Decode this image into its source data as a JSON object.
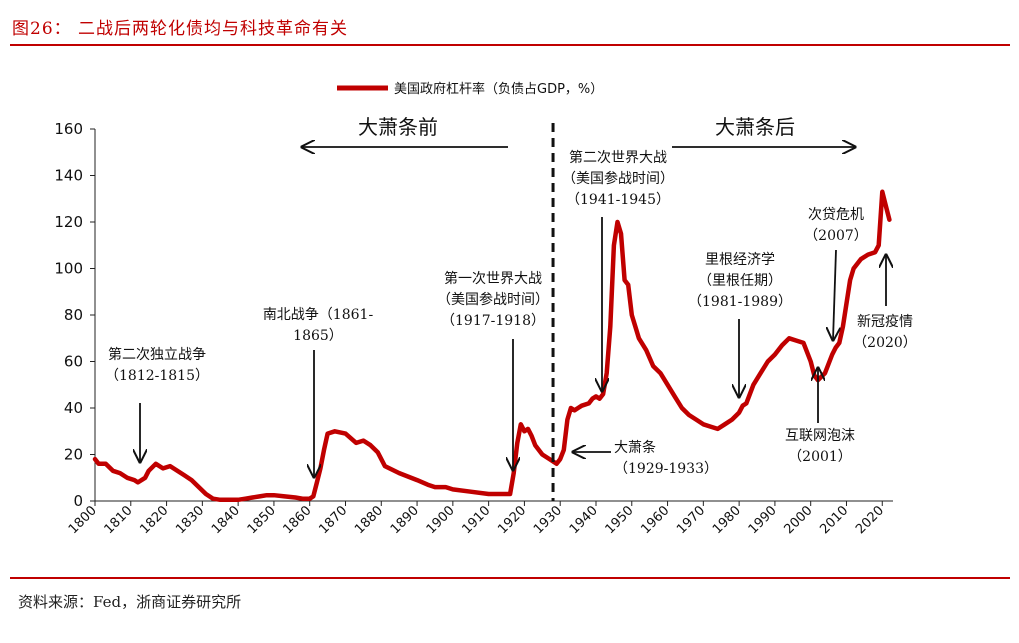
{
  "figure_title": "图26：  二战后两轮化债均与科技革命有关",
  "source": "资料来源：Fed，浙商证券研究所",
  "colors": {
    "accent": "#c00000",
    "text": "#111111"
  },
  "chart_data": {
    "type": "line",
    "title": "",
    "xlabel": "",
    "ylabel": "",
    "xlim": [
      1800,
      2023
    ],
    "ylim": [
      0,
      160
    ],
    "yticks": [
      "0",
      "20",
      "40",
      "60",
      "80",
      "100",
      "120",
      "140",
      "160"
    ],
    "xticks": [
      "1800",
      "1810",
      "1820",
      "1830",
      "1840",
      "1850",
      "1860",
      "1870",
      "1880",
      "1890",
      "1900",
      "1910",
      "1920",
      "1930",
      "1940",
      "1950",
      "1960",
      "1970",
      "1980",
      "1990",
      "2000",
      "2010",
      "2020"
    ],
    "grid": false,
    "legend": "top-center",
    "series": [
      {
        "name": "美国政府杠杆率（负债占GDP，%）",
        "color": "#c00000",
        "x": [
          1800,
          1801,
          1803,
          1805,
          1807,
          1809,
          1811,
          1812,
          1814,
          1815,
          1817,
          1819,
          1821,
          1823,
          1825,
          1827,
          1829,
          1831,
          1833,
          1835,
          1838,
          1840,
          1842,
          1844,
          1846,
          1848,
          1850,
          1853,
          1856,
          1858,
          1860,
          1861,
          1862,
          1863,
          1864,
          1865,
          1867,
          1870,
          1873,
          1875,
          1877,
          1879,
          1881,
          1885,
          1890,
          1893,
          1895,
          1898,
          1900,
          1905,
          1910,
          1914,
          1916,
          1917,
          1918,
          1919,
          1920,
          1921,
          1922,
          1923,
          1925,
          1927,
          1929,
          1930,
          1931,
          1932,
          1933,
          1934,
          1935,
          1936,
          1938,
          1939,
          1940,
          1941,
          1942,
          1943,
          1944,
          1945,
          1946,
          1947,
          1948,
          1949,
          1950,
          1952,
          1954,
          1956,
          1958,
          1960,
          1962,
          1964,
          1966,
          1968,
          1970,
          1972,
          1974,
          1976,
          1978,
          1980,
          1981,
          1982,
          1984,
          1986,
          1988,
          1990,
          1992,
          1994,
          1996,
          1998,
          2000,
          2001,
          2002,
          2004,
          2006,
          2007,
          2008,
          2009,
          2010,
          2011,
          2012,
          2014,
          2016,
          2018,
          2019,
          2020,
          2021,
          2022
        ],
        "y": [
          18,
          16,
          16,
          13,
          12,
          10,
          9,
          8,
          10,
          13,
          16,
          14,
          15,
          13,
          11,
          9,
          6,
          3,
          1,
          0.5,
          0.5,
          0.5,
          1,
          1.5,
          2,
          2.5,
          2.5,
          2,
          1.5,
          1,
          1,
          2,
          8,
          14,
          22,
          29,
          30,
          29,
          25,
          26,
          24,
          21,
          15,
          12,
          9,
          7,
          6,
          6,
          5,
          4,
          3,
          3,
          3,
          12,
          25,
          33,
          30,
          31,
          28,
          24,
          20,
          18,
          16,
          18,
          22,
          35,
          40,
          39,
          40,
          41,
          42,
          44,
          45,
          44,
          46,
          55,
          75,
          110,
          120,
          115,
          95,
          93,
          80,
          70,
          65,
          58,
          55,
          50,
          45,
          40,
          37,
          35,
          33,
          32,
          31,
          33,
          35,
          38,
          41,
          42,
          50,
          55,
          60,
          63,
          67,
          70,
          69,
          68,
          60,
          54,
          52,
          55,
          63,
          66,
          68,
          75,
          85,
          95,
          100,
          104,
          106,
          107,
          110,
          133,
          127,
          121
        ]
      }
    ],
    "annotations": [
      {
        "lines": [
          "第二次独立战争",
          "（1812-1815）"
        ]
      },
      {
        "lines": [
          "南北战争（1861-",
          "1865）"
        ]
      },
      {
        "lines": [
          "第一次世界大战",
          "（美国参战时间）",
          "（1917-1918）"
        ]
      },
      {
        "lines": [
          "第二次世界大战",
          "（美国参战时间）",
          "（1941-1945）"
        ]
      },
      {
        "lines": [
          "大萧条",
          "（1929-1933）"
        ]
      },
      {
        "lines": [
          "里根经济学",
          "（里根任期）",
          "（1981-1989）"
        ]
      },
      {
        "lines": [
          "次贷危机",
          "（2007）"
        ]
      },
      {
        "lines": [
          "互联网泡沫",
          "（2001）"
        ]
      },
      {
        "lines": [
          "新冠疫情",
          "（2020）"
        ]
      }
    ],
    "eras": [
      "大萧条前",
      "大萧条后"
    ]
  }
}
